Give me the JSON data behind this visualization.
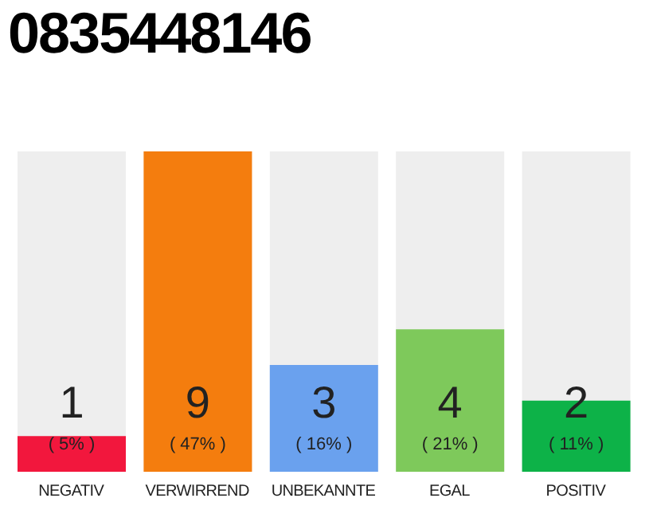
{
  "chart_data": {
    "type": "bar",
    "title": "0835448146",
    "categories": [
      "NEGATIV",
      "VERWIRREND",
      "UNBEKANNTE",
      "EGAL",
      "POSITIV"
    ],
    "values": [
      1,
      9,
      3,
      4,
      2
    ],
    "colors": [
      "#f2173d",
      "#f47d0e",
      "#6aa1ee",
      "#7ec95b",
      "#0db248"
    ],
    "data_labels": true,
    "annotations": [
      "( 5% )",
      "( 47% )",
      "( 16% )",
      "( 21% )",
      "( 11% )"
    ],
    "grid": false,
    "legend": false
  }
}
